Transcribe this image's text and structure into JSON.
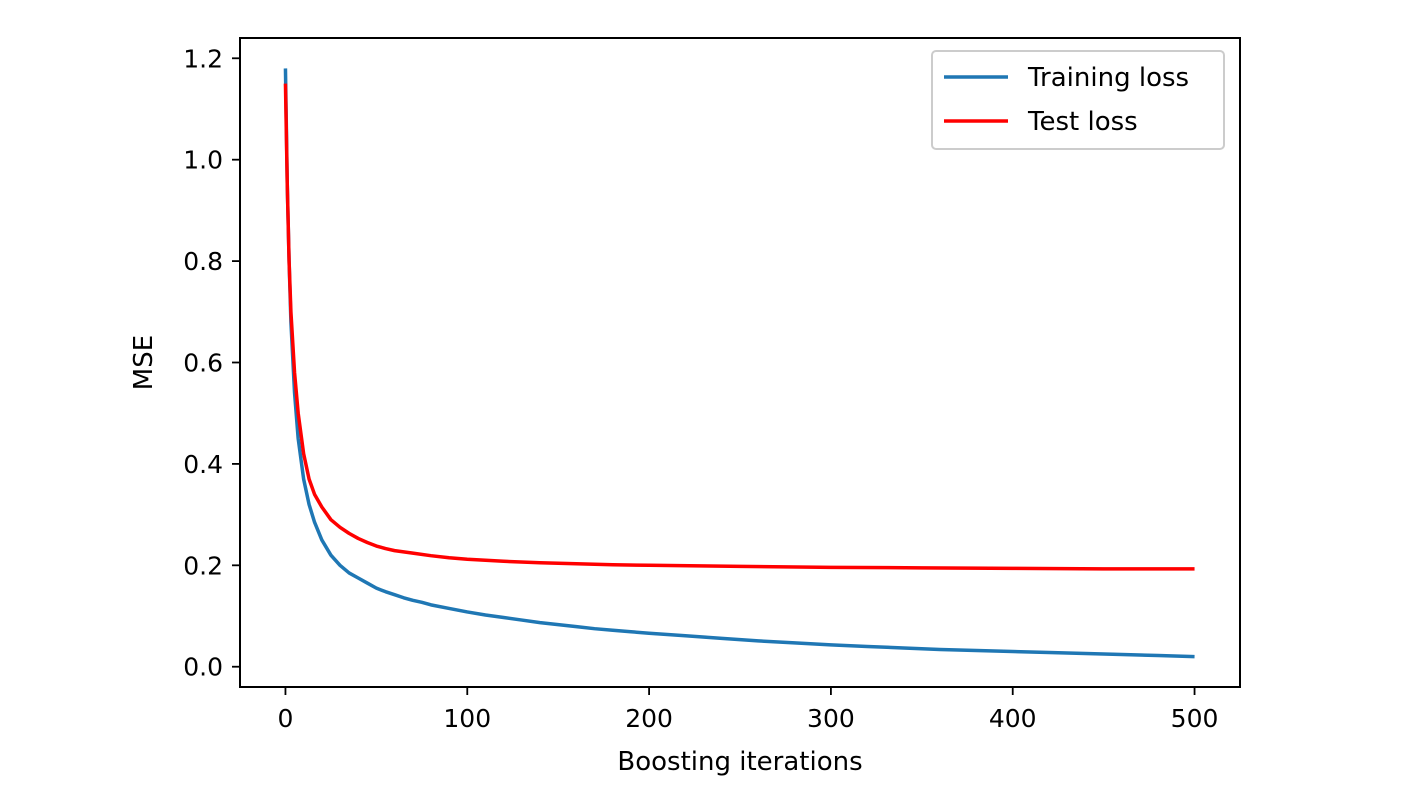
{
  "chart_data": {
    "type": "line",
    "title": "",
    "xlabel": "Boosting iterations",
    "ylabel": "MSE",
    "xlim": [
      -25,
      525
    ],
    "ylim": [
      -0.04,
      1.24
    ],
    "xticks": [
      0,
      100,
      200,
      300,
      400,
      500
    ],
    "yticks": [
      0.0,
      0.2,
      0.4,
      0.6,
      0.8,
      1.0,
      1.2
    ],
    "xtick_labels": [
      "0",
      "100",
      "200",
      "300",
      "400",
      "500"
    ],
    "ytick_labels": [
      "0.0",
      "0.2",
      "0.4",
      "0.6",
      "0.8",
      "1.0",
      "1.2"
    ],
    "grid": false,
    "legend_position": "top-right",
    "series": [
      {
        "name": "Training loss",
        "color": "#1f77b4",
        "x": [
          0,
          1,
          2,
          3,
          5,
          7,
          10,
          13,
          16,
          20,
          25,
          30,
          35,
          40,
          45,
          50,
          55,
          60,
          65,
          70,
          75,
          80,
          90,
          100,
          110,
          120,
          130,
          140,
          150,
          160,
          170,
          180,
          190,
          200,
          220,
          240,
          260,
          280,
          300,
          320,
          340,
          360,
          380,
          400,
          420,
          440,
          460,
          480,
          500
        ],
        "y": [
          1.18,
          0.95,
          0.8,
          0.68,
          0.54,
          0.45,
          0.37,
          0.32,
          0.285,
          0.25,
          0.22,
          0.2,
          0.185,
          0.175,
          0.165,
          0.155,
          0.148,
          0.142,
          0.136,
          0.131,
          0.127,
          0.122,
          0.115,
          0.108,
          0.102,
          0.097,
          0.092,
          0.087,
          0.083,
          0.079,
          0.075,
          0.072,
          0.069,
          0.066,
          0.061,
          0.056,
          0.051,
          0.047,
          0.043,
          0.04,
          0.037,
          0.034,
          0.032,
          0.03,
          0.028,
          0.026,
          0.024,
          0.022,
          0.02
        ]
      },
      {
        "name": "Test loss",
        "color": "#ff0000",
        "x": [
          0,
          1,
          2,
          3,
          5,
          7,
          10,
          13,
          16,
          20,
          25,
          30,
          35,
          40,
          45,
          50,
          55,
          60,
          70,
          80,
          90,
          100,
          120,
          140,
          160,
          180,
          200,
          250,
          300,
          350,
          400,
          450,
          500
        ],
        "y": [
          1.15,
          0.95,
          0.8,
          0.7,
          0.58,
          0.5,
          0.42,
          0.37,
          0.34,
          0.315,
          0.29,
          0.275,
          0.263,
          0.253,
          0.245,
          0.238,
          0.233,
          0.229,
          0.224,
          0.219,
          0.215,
          0.212,
          0.208,
          0.205,
          0.203,
          0.201,
          0.2,
          0.198,
          0.196,
          0.195,
          0.194,
          0.193,
          0.193
        ]
      }
    ]
  }
}
